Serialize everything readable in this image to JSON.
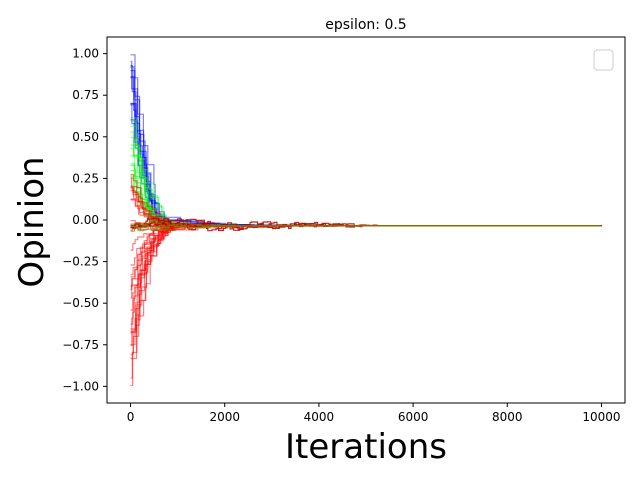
{
  "chart_data": {
    "type": "line",
    "title": "epsilon: 0.5",
    "xlabel": "Iterations",
    "ylabel": "Opinion",
    "xlim": [
      -500,
      10500
    ],
    "ylim": [
      -1.1,
      1.1
    ],
    "xticks": [
      0,
      2000,
      4000,
      6000,
      8000,
      10000
    ],
    "xtick_labels": [
      "0",
      "2000",
      "4000",
      "6000",
      "8000",
      "10000"
    ],
    "yticks": [
      1.0,
      0.75,
      0.5,
      0.25,
      0.0,
      -0.25,
      -0.5,
      -0.75,
      -1.0
    ],
    "ytick_labels": [
      "1.00",
      "0.75",
      "0.50",
      "0.25",
      "0.00",
      "−0.25",
      "−0.50",
      "−0.75",
      "−1.00"
    ],
    "grid": false,
    "legend": {
      "placement": "upper right",
      "entries": []
    },
    "consensus_value": -0.035,
    "x_end": 10000,
    "series": [
      {
        "color": "#0000ff",
        "opacity": 0.5,
        "count": 12,
        "start_range": [
          0.6,
          1.0
        ],
        "converge_by": 900
      },
      {
        "color": "#00ff00",
        "opacity": 0.5,
        "count": 14,
        "start_range": [
          0.1,
          0.65
        ],
        "converge_by": 1000
      },
      {
        "color": "#ff0000",
        "opacity": 0.5,
        "count": 30,
        "start_range": [
          -1.0,
          0.35
        ],
        "converge_by": 1300
      },
      {
        "color": "#b30000",
        "opacity": 0.85,
        "count": 3,
        "start_range": [
          -0.05,
          0.0
        ],
        "converge_by": 6000
      },
      {
        "color": "#808000",
        "opacity": 0.7,
        "count": 3,
        "start_range": [
          -0.07,
          0.0
        ],
        "converge_by": 2500
      }
    ]
  }
}
